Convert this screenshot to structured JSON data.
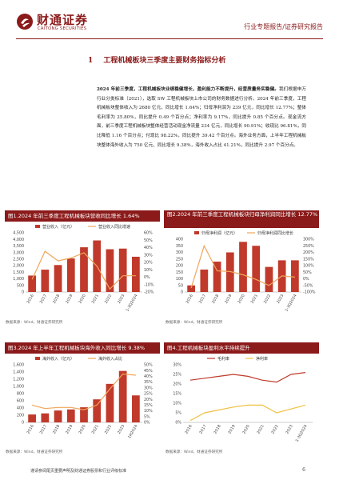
{
  "header": {
    "brand_cn": "财通证券",
    "brand_en": "CAITONG SECURITIES",
    "report_type": "行业专题报告/证券研究报告"
  },
  "section": {
    "number": "1",
    "title": "工程机械板块三季度主要财务指标分析"
  },
  "body": {
    "lead_bold": "2024 年前三季度，工程机械板块业绩稳健增长，盈利能力不断提升，经营质量务实稳健。",
    "paragraph": "我们根据申万行业分类标准（2021），选取 SW 工程机械板块上市公司的财务数据进行分析。2024 年前三季度，工程机械板块整体收入为 2680 亿元，同比增长 1.64%；归母净利润为 239 亿元，同比增长 12.77%；整体毛利率为 25.80%，同比提升 0.49 个百分点；净利率为 9.17%，同比提升 0.85 个百分点。现金流方面，前三季度工程机械板块整体经营活动现金净流量 234 亿元，同比增长 90.91%；收现比 96.81%，同比降低 1.16 个百分点；付现比 98.22%，同比提升 39.42 个百分点。海外业务方面，上半年工程机械板块整体海外收入为 750 亿元，同比增长 9.38%，海外收入占比 41.21%，同比提升 2.97 个百分点。"
  },
  "charts": [
    {
      "title": "图1.2024 年前三季度工程机械板块营收同比增长 1.64%",
      "source": "数据来源：Wind，财通证券研究所",
      "chart_data": {
        "type": "bar",
        "categories": [
          "2016",
          "2017",
          "2018",
          "2019",
          "2020",
          "2021",
          "2022",
          "2023",
          "1-3Q2024"
        ],
        "series": [
          {
            "name": "营业收入（亿元）",
            "values": [
              1250,
              1700,
              2050,
              2550,
              3400,
              3920,
              3250,
              3300,
              2680
            ],
            "axis": "left"
          },
          {
            "name": "营业收入同比增速",
            "values": [
              -0.03,
              0.35,
              0.22,
              0.26,
              0.33,
              0.15,
              -0.16,
              0.02,
              0.02
            ],
            "axis": "right"
          }
        ],
        "ylim_left": [
          0,
          4500
        ],
        "yticks_left": [
          "4,500",
          "4,000",
          "3,500",
          "3,000",
          "2,500",
          "2,000",
          "1,500",
          "1,000",
          "500",
          "0"
        ],
        "ylim_right": [
          -0.2,
          0.6
        ],
        "yticks_right": [
          "60%",
          "50%",
          "40%",
          "30%",
          "20%",
          "10%",
          "0%",
          "-10%",
          "-20%"
        ],
        "bar_color": "#c0392b",
        "line_color": "#f0a65a"
      }
    },
    {
      "title": "图2.2024 年前三季度工程机械板块归母净利润同比增长 12.77%",
      "source": "数据来源：Wind，财通证券研究所",
      "chart_data": {
        "type": "bar",
        "categories": [
          "2016",
          "2017",
          "2018",
          "2019",
          "2020",
          "2021",
          "2022",
          "2023",
          "1-3Q2024"
        ],
        "series": [
          {
            "name": "归母净利润（亿元）",
            "values": [
              50,
              170,
              230,
              300,
              380,
              350,
              190,
              240,
              240
            ],
            "axis": "left"
          },
          {
            "name": "归母净利润同比增长",
            "values": [
              -0.7,
              2.5,
              0.6,
              0.55,
              0.3,
              -0.05,
              -0.5,
              0.22,
              0.13
            ],
            "axis": "right"
          }
        ],
        "ylim_left": [
          0,
          400
        ],
        "yticks_left": [
          "400",
          "350",
          "300",
          "250",
          "200",
          "150",
          "100",
          "50",
          "0"
        ],
        "ylim_right": [
          -1.0,
          3.0
        ],
        "yticks_right": [
          "300%",
          "250%",
          "200%",
          "150%",
          "100%",
          "50%",
          "0%",
          "-50%",
          "-100%"
        ],
        "bar_color": "#c0392b",
        "line_color": "#f0a65a"
      }
    },
    {
      "title": "图3.2024 年上半年工程机械板块海外收入同比增长 9.38%",
      "source": "数据来源：Wind，财通证券研究所",
      "chart_data": {
        "type": "bar",
        "categories": [
          "2016",
          "2017",
          "2018",
          "2019",
          "2020",
          "2021",
          "2022",
          "2023",
          "1H2024"
        ],
        "series": [
          {
            "name": "海外收入（亿元）",
            "values": [
              220,
              250,
              330,
              360,
              420,
              640,
              1070,
              1430,
              750
            ],
            "axis": "left"
          },
          {
            "name": "海外收入占比",
            "values": [
              0.15,
              0.12,
              0.13,
              0.13,
              0.11,
              0.15,
              0.29,
              0.42,
              0.41
            ],
            "axis": "right"
          }
        ],
        "ylim_left": [
          0,
          1600
        ],
        "yticks_left": [
          "1,600",
          "1,400",
          "1,200",
          "1,000",
          "800",
          "600",
          "400",
          "200",
          "0"
        ],
        "ylim_right": [
          0,
          0.5
        ],
        "yticks_right": [
          "50%",
          "45%",
          "40%",
          "35%",
          "30%",
          "25%",
          "20%",
          "15%",
          "10%",
          "5%",
          "0%"
        ],
        "bar_color": "#c0392b",
        "line_color": "#f0a65a"
      }
    },
    {
      "title": "图4.工程机械板块盈利水平持续提升",
      "source": "数据来源：Wind，财通证券研究所",
      "chart_data": {
        "type": "line",
        "categories": [
          "2016",
          "2017",
          "2018",
          "2019",
          "2020",
          "2021",
          "2022",
          "2023",
          "1-3Q2024"
        ],
        "series": [
          {
            "name": "毛利率",
            "values": [
              0.22,
              0.23,
              0.24,
              0.25,
              0.24,
              0.22,
              0.21,
              0.25,
              0.26
            ],
            "color": "#c0392b"
          },
          {
            "name": "净利率",
            "values": [
              0.01,
              0.05,
              0.065,
              0.08,
              0.09,
              0.09,
              0.05,
              0.07,
              0.09
            ],
            "color": "#f0c040"
          }
        ],
        "ylim": [
          0,
          0.3
        ],
        "yticks": [
          "30%",
          "25%",
          "20%",
          "15%",
          "10%",
          "5%",
          "0%"
        ]
      }
    }
  ],
  "footer": {
    "disclaimer": "谨请参阅尾页重要声明及财通证券股票和行业评级标准",
    "page_number": "6"
  }
}
